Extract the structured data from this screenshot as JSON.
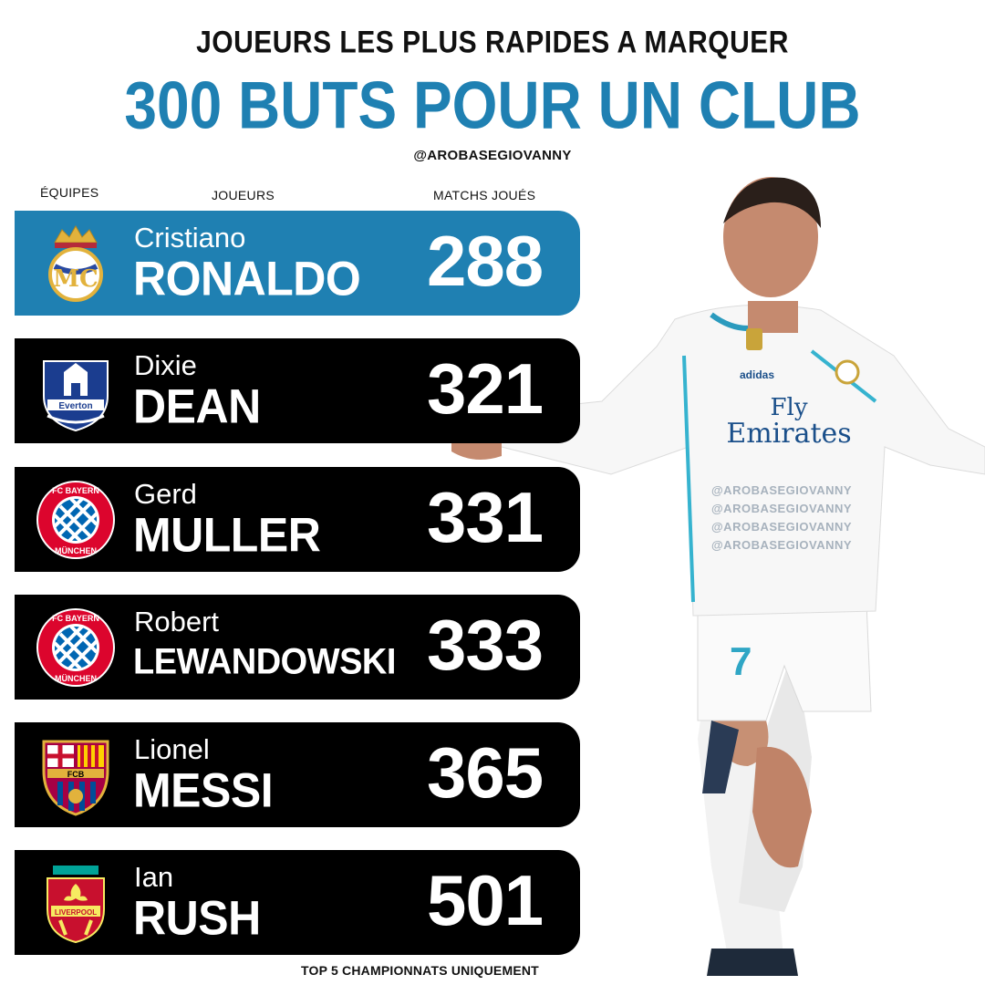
{
  "header": {
    "subtitle": "JOUEURS LES PLUS RAPIDES A MARQUER",
    "title": "300 BUTS POUR UN CLUB",
    "handle": "@AROBASEGIOVANNY"
  },
  "columns": {
    "teams": "ÉQUIPES",
    "players": "JOUEURS",
    "matches": "MATCHS JOUÉS"
  },
  "rows": [
    {
      "first": "Cristiano",
      "last": "RONALDO",
      "matches": "288",
      "club_icon": "real-madrid-crest-icon",
      "highlight": true
    },
    {
      "first": "Dixie",
      "last": "DEAN",
      "matches": "321",
      "club_icon": "everton-crest-icon",
      "highlight": false
    },
    {
      "first": "Gerd",
      "last": "MULLER",
      "matches": "331",
      "club_icon": "bayern-crest-icon",
      "highlight": false
    },
    {
      "first": "Robert",
      "last": "LEWANDOWSKI",
      "matches": "333",
      "club_icon": "bayern-crest-icon",
      "highlight": false
    },
    {
      "first": "Lionel",
      "last": "MESSI",
      "matches": "365",
      "club_icon": "barcelona-crest-icon",
      "highlight": false
    },
    {
      "first": "Ian",
      "last": "RUSH",
      "matches": "501",
      "club_icon": "liverpool-crest-icon",
      "highlight": false
    }
  ],
  "footnote": "TOP 5 CHAMPIONNATS UNIQUEMENT",
  "watermarks": [
    "@AROBASEGIOVANNY",
    "@AROBASEGIOVANNY",
    "@AROBASEGIOVANNY",
    "@AROBASEGIOVANNY"
  ],
  "jersey": {
    "sponsor_line1": "Fly",
    "sponsor_line2": "Emirates",
    "brand": "adidas",
    "number": "7"
  },
  "colors": {
    "accent": "#1f80b2",
    "row_background": "#000000"
  }
}
